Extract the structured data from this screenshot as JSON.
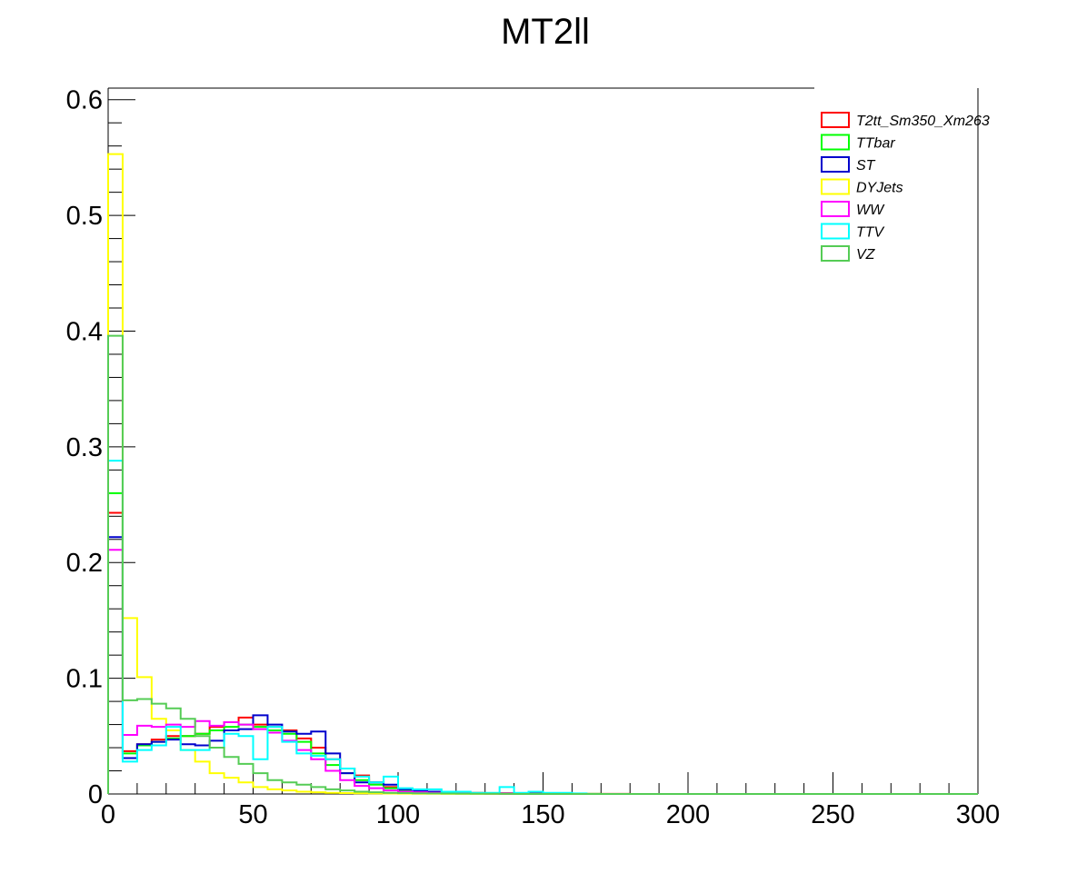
{
  "chart_data": {
    "type": "histogram",
    "title": "MT2ll",
    "xlabel": "",
    "ylabel": "",
    "xlim": [
      0,
      300
    ],
    "ylim": [
      0,
      0.61
    ],
    "bin_width": 5,
    "grid": false,
    "legend_position": "top-right",
    "x_ticks": [
      0,
      50,
      100,
      150,
      200,
      250,
      300
    ],
    "x_tick_labels": [
      "0",
      "50",
      "100",
      "150",
      "200",
      "250",
      "300"
    ],
    "y_ticks": [
      0,
      0.1,
      0.2,
      0.3,
      0.4,
      0.5,
      0.6
    ],
    "y_tick_labels": [
      "0",
      "0.1",
      "0.2",
      "0.3",
      "0.4",
      "0.5",
      "0.6"
    ],
    "series": [
      {
        "name": "T2tt_Sm350_Xm263",
        "color": "#ff0000",
        "values": [
          0.243,
          0.037,
          0.043,
          0.047,
          0.05,
          0.05,
          0.052,
          0.058,
          0.062,
          0.066,
          0.06,
          0.058,
          0.055,
          0.048,
          0.04,
          0.03,
          0.022,
          0.016,
          0.01,
          0.006,
          0.004,
          0.003,
          0.002,
          0.0015,
          0.0012,
          0.001,
          0.0008,
          0.0006,
          0.0005,
          0.0004,
          0.0003,
          0.0002,
          0.0002,
          0.0001,
          0.0001,
          0.0001
        ]
      },
      {
        "name": "TTbar",
        "color": "#00ff00",
        "values": [
          0.26,
          0.035,
          0.042,
          0.045,
          0.048,
          0.05,
          0.052,
          0.055,
          0.058,
          0.06,
          0.058,
          0.055,
          0.052,
          0.045,
          0.035,
          0.025,
          0.018,
          0.012,
          0.008,
          0.005,
          0.003,
          0.002,
          0.0015,
          0.001,
          0.0008,
          0.0006,
          0.0004,
          0.0003,
          0.0002,
          0.0002,
          0.0001,
          0.0001,
          0.0001,
          0.0001
        ]
      },
      {
        "name": "ST",
        "color": "#0000cc",
        "values": [
          0.222,
          0.031,
          0.043,
          0.045,
          0.047,
          0.043,
          0.042,
          0.046,
          0.055,
          0.056,
          0.068,
          0.06,
          0.054,
          0.052,
          0.054,
          0.035,
          0.018,
          0.01,
          0.01,
          0.008,
          0.004,
          0.003,
          0.002,
          0.0015,
          0.001,
          0.0008,
          0.0005,
          0.0004,
          0.0003,
          0.0002,
          0.0001,
          0.0001
        ]
      },
      {
        "name": "DYJets",
        "color": "#ffff00",
        "values": [
          0.553,
          0.152,
          0.101,
          0.065,
          0.055,
          0.038,
          0.028,
          0.018,
          0.014,
          0.01,
          0.006,
          0.004,
          0.003,
          0.002,
          0.0015,
          0.001,
          0.0008,
          0.0006,
          0.0005,
          0.0004,
          0.0003,
          0.0002,
          0.0002,
          0.0001,
          0.0001,
          0.0001
        ]
      },
      {
        "name": "WW",
        "color": "#ff00ff",
        "values": [
          0.211,
          0.051,
          0.059,
          0.058,
          0.06,
          0.058,
          0.063,
          0.059,
          0.062,
          0.06,
          0.056,
          0.053,
          0.046,
          0.038,
          0.03,
          0.02,
          0.012,
          0.007,
          0.005,
          0.003,
          0.002,
          0.0015,
          0.001,
          0.0008,
          0.0006,
          0.0004,
          0.0003,
          0.0002,
          0.0002,
          0.0001,
          0.0001
        ]
      },
      {
        "name": "TTV",
        "color": "#00ffff",
        "values": [
          0.288,
          0.028,
          0.038,
          0.042,
          0.058,
          0.038,
          0.038,
          0.04,
          0.052,
          0.05,
          0.03,
          0.058,
          0.045,
          0.035,
          0.033,
          0.03,
          0.022,
          0.015,
          0.01,
          0.015,
          0.005,
          0.004,
          0.004,
          0.002,
          0.002,
          0.001,
          0.001,
          0.006,
          0.001,
          0.002,
          0.001,
          0.001,
          0.0005
        ]
      },
      {
        "name": "VZ",
        "color": "#55cc55",
        "values": [
          0.396,
          0.081,
          0.082,
          0.078,
          0.074,
          0.065,
          0.05,
          0.04,
          0.032,
          0.026,
          0.018,
          0.012,
          0.01,
          0.008,
          0.006,
          0.004,
          0.003,
          0.002,
          0.0015,
          0.001,
          0.0008,
          0.0006,
          0.0005,
          0.0004,
          0.0003,
          0.0002,
          0.0002,
          0.0001
        ]
      }
    ]
  }
}
